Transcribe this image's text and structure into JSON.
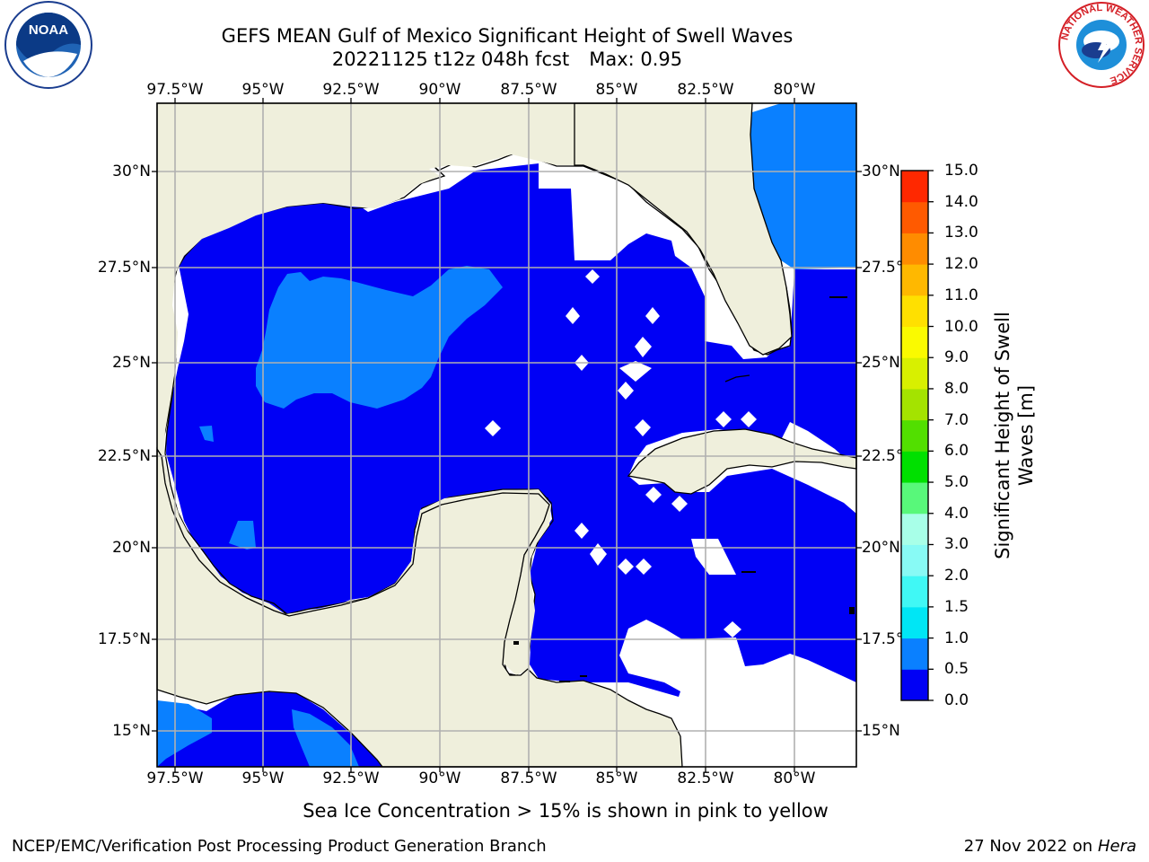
{
  "header": {
    "title_line1": "GEFS MEAN Gulf of Mexico Significant Height of Swell Waves",
    "date_fcst": "20221125 t12z 048h fcst",
    "max_label": "Max: 0.95"
  },
  "map": {
    "lon_labels": [
      "97.5°W",
      "95°W",
      "92.5°W",
      "90°W",
      "87.5°W",
      "85°W",
      "82.5°W",
      "80°W"
    ],
    "lat_labels_left": [
      "30°N",
      "27.5°N",
      "25°N",
      "22.5°N",
      "20°N",
      "17.5°N",
      "15°N"
    ],
    "lat_labels_right": [
      "30°N",
      "27.5°N",
      "25°N",
      "22.5°N",
      "20°N",
      "17.5°N",
      "15°N"
    ],
    "colors": {
      "land": "#efefdc",
      "swell_low": "#0000f5",
      "swell_mid": "#0a80ff",
      "no_data": "#ffffff",
      "grid": "#b0b0b0",
      "coast": "#000000"
    }
  },
  "colorbar": {
    "title": "Significant Height of Swell Waves [m]",
    "tick_labels": [
      "0.0",
      "0.5",
      "1.0",
      "1.5",
      "2.0",
      "3.0",
      "4.0",
      "5.0",
      "6.0",
      "7.0",
      "8.0",
      "9.0",
      "10.0",
      "11.0",
      "12.0",
      "13.0",
      "14.0",
      "15.0"
    ],
    "colors": [
      "#0000f5",
      "#0a80ff",
      "#00e6f5",
      "#40f8f5",
      "#88faf5",
      "#a8ffe8",
      "#58f87a",
      "#00e000",
      "#52df00",
      "#a4e300",
      "#d8f000",
      "#fafa00",
      "#ffe000",
      "#ffb800",
      "#ff8c00",
      "#ff5a00",
      "#ff2800"
    ]
  },
  "footer": {
    "sea_ice_note": "Sea Ice Concentration > 15% is shown in pink to yellow",
    "branch": "NCEP/EMC/Verification Post Processing Product Generation Branch",
    "date": "27 Nov 2022 on",
    "host": "Hera"
  },
  "logos": {
    "noaa_icon": "noaa-logo-icon",
    "noaa_text": "NOAA",
    "nws_icon": "nws-logo-icon",
    "nws_ring_text": "NATIONAL WEATHER SERVICE"
  }
}
